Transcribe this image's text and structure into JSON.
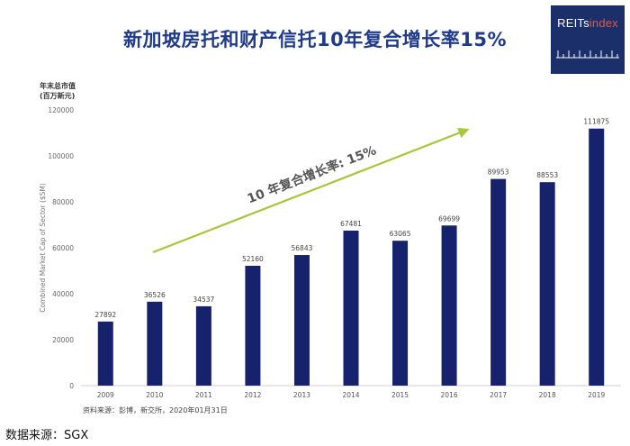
{
  "logo": {
    "text_main": "REITs",
    "text_accent": "index"
  },
  "unit_label_line1": "年末总市值",
  "unit_label_line2": "(百万新元)",
  "source_inner": "资料来源：彭博，新交所，2020年01月31日",
  "source_outer": "数据来源：SGX",
  "chart_data": {
    "type": "bar",
    "title": "新加坡房托和财产信托10年复合增长率15%",
    "xlabel": "",
    "ylabel": "Combined Market Cap of Sector ($SM)",
    "ylim": [
      0,
      120000
    ],
    "yticks": [
      0,
      20000,
      40000,
      60000,
      80000,
      100000,
      120000
    ],
    "categories": [
      "2009",
      "2010",
      "2011",
      "2012",
      "2013",
      "2014",
      "2015",
      "2016",
      "2017",
      "2018",
      "2019"
    ],
    "values": [
      27892,
      36526,
      34537,
      52160,
      56843,
      67481,
      63065,
      69699,
      89953,
      88553,
      111875
    ],
    "annotation": "10 年复合增长率: 15%",
    "colors": {
      "bar": "#16226b",
      "arrow": "#a6c73a",
      "title": "#1f3a8a"
    }
  }
}
